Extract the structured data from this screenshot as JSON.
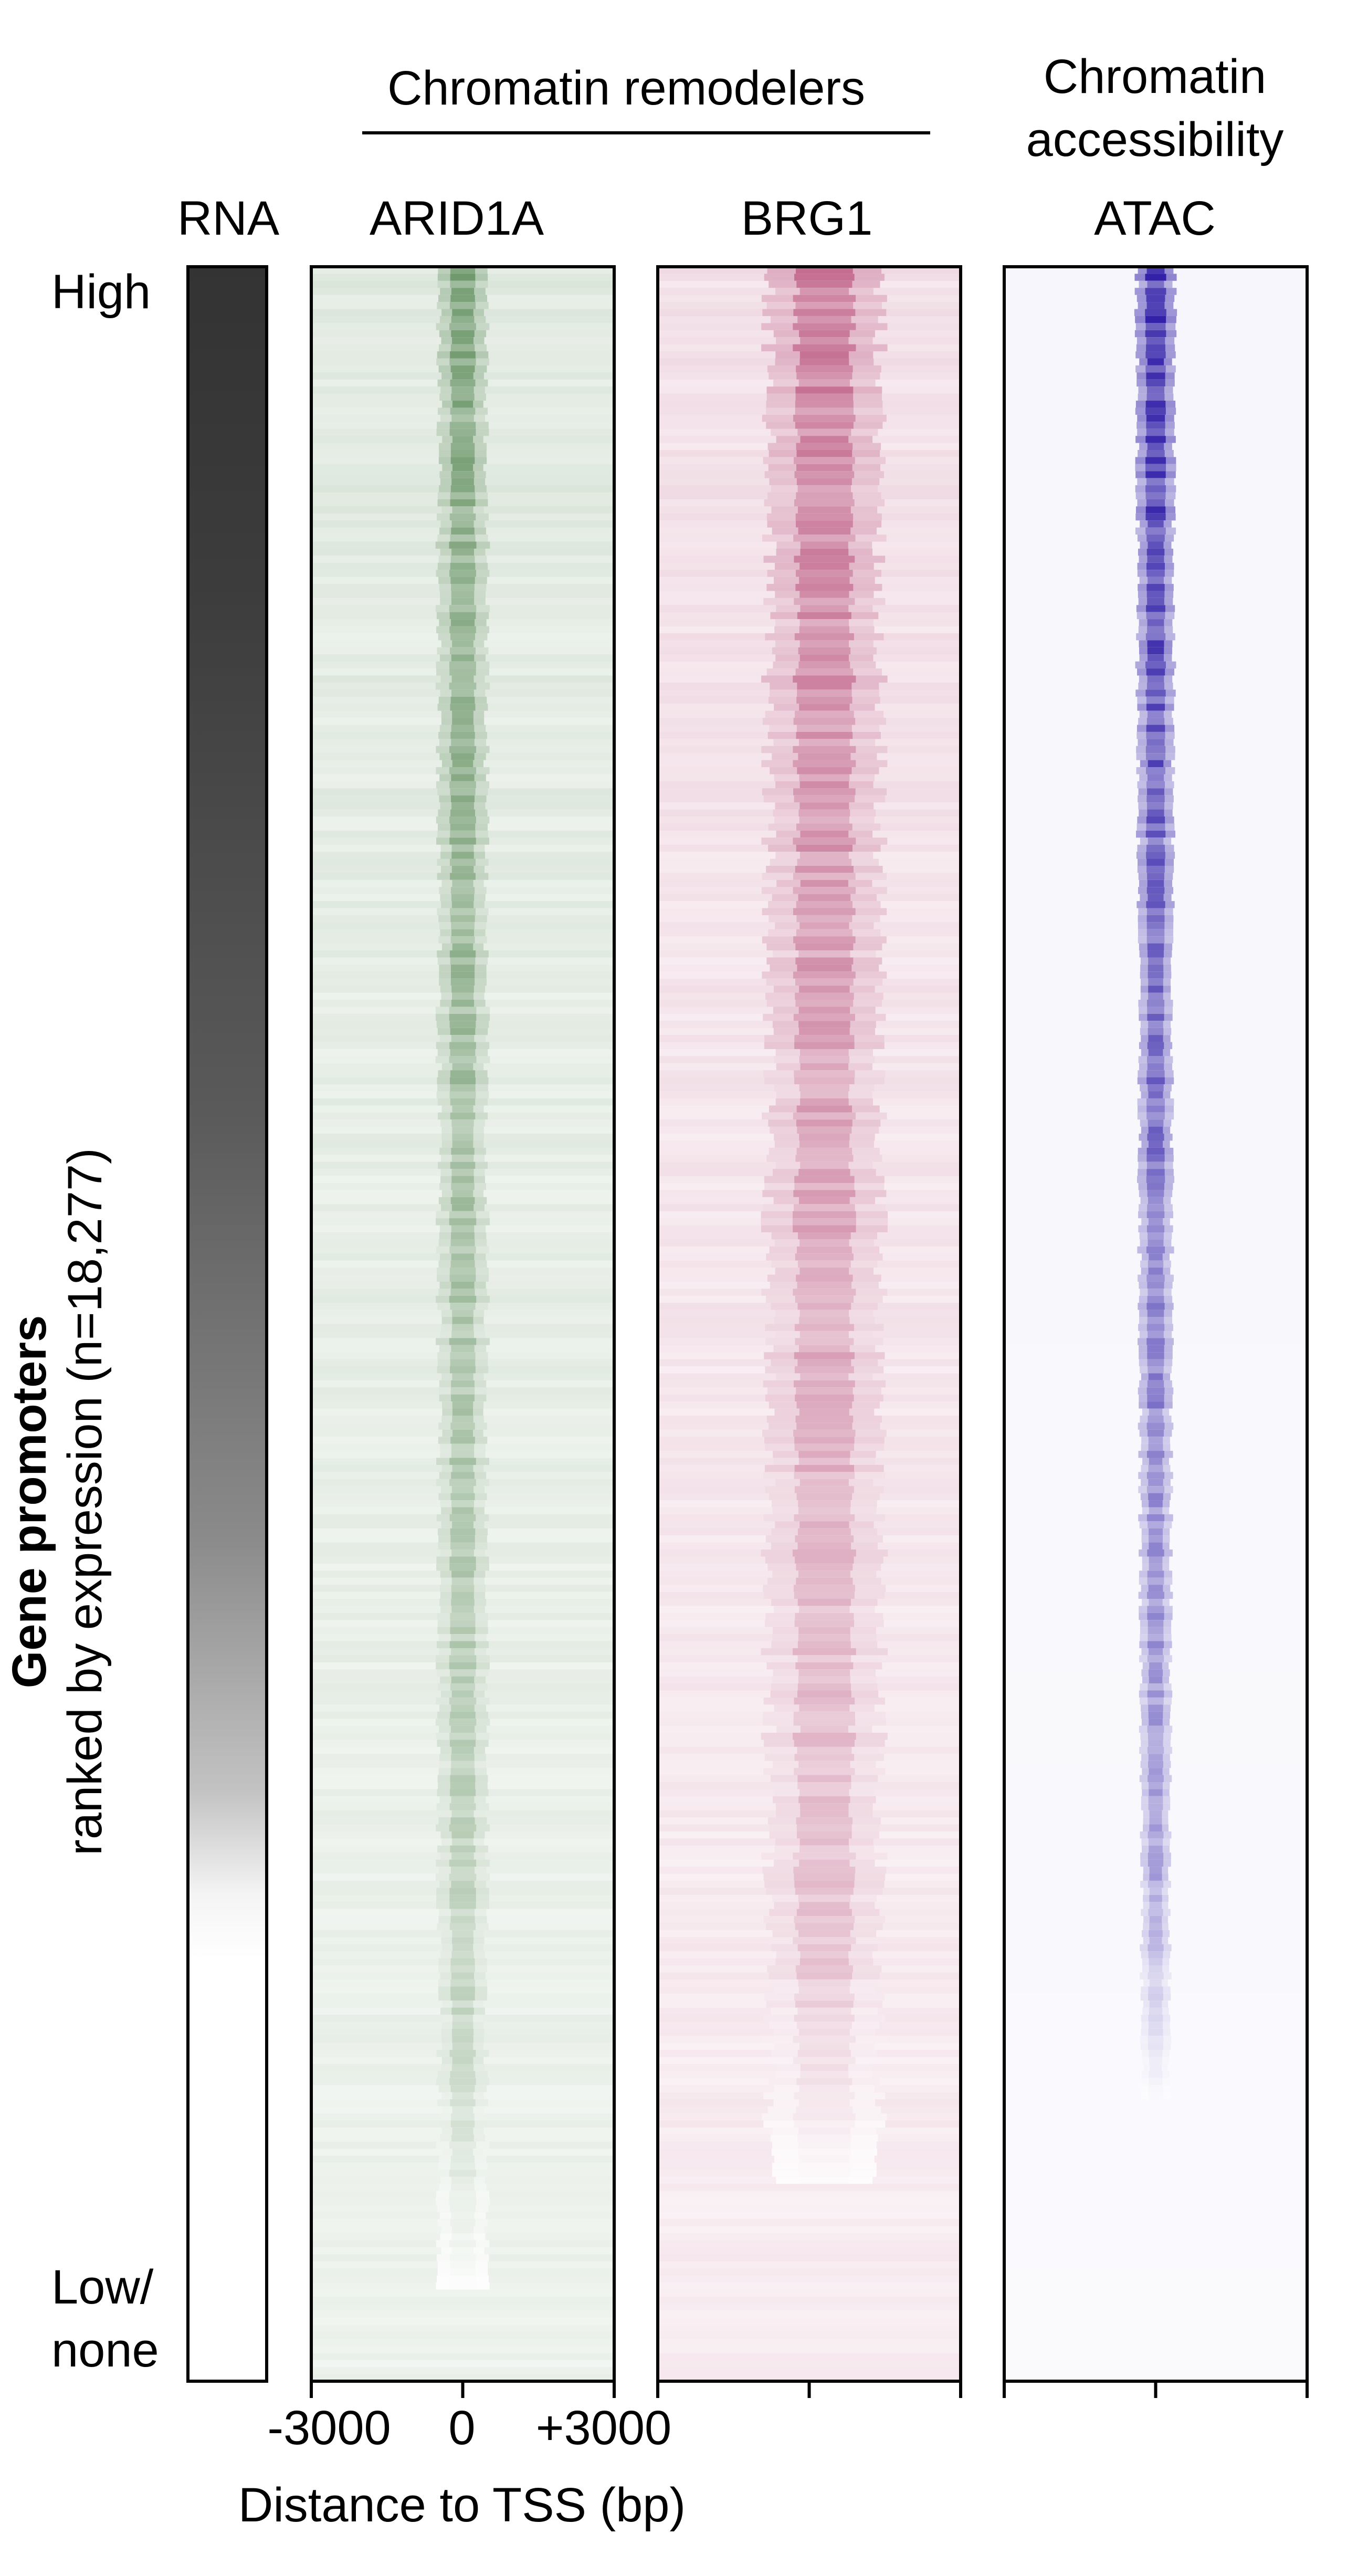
{
  "header": {
    "group_remodelers": "Chromatin remodelers",
    "group_accessibility_line1": "Chromatin",
    "group_accessibility_line2": "accessibility"
  },
  "y_axis": {
    "label_bold": "Gene promoters",
    "label_regular": "ranked by expression (n=18,277)",
    "top_label": "High",
    "bottom_label_line1": "Low/",
    "bottom_label_line2": "none"
  },
  "x_axis": {
    "label": "Distance to TSS (bp)",
    "ticks": [
      "-3000",
      "0",
      "+3000"
    ]
  },
  "chart_data": {
    "type": "heatmap",
    "title": "",
    "xlabel": "Distance to TSS (bp)",
    "ylabel": "Gene promoters ranked by expression (n=18,277)",
    "x_range": [
      -3000,
      3000
    ],
    "n_rows": 18277,
    "row_order": "descending RNA expression (High at top, Low/none at bottom)",
    "panels": [
      {
        "name": "RNA",
        "kind": "gradient",
        "color_high": "#333333",
        "color_low": "#ffffff",
        "fade_to_white_fraction": 0.77
      },
      {
        "name": "ARID1A",
        "kind": "tss-heatmap",
        "color": "#2e6b2a",
        "peak_x": 0,
        "width_bp": 900,
        "signal_fade_fraction": 0.85
      },
      {
        "name": "BRG1",
        "kind": "tss-heatmap",
        "color": "#a8285c",
        "peak_x": 300,
        "width_bp": 2100,
        "signal_fade_fraction": 0.8
      },
      {
        "name": "ATAC",
        "kind": "tss-heatmap",
        "color": "#3322a8",
        "peak_x": 0,
        "width_bp": 600,
        "signal_fade_fraction": 0.76
      }
    ],
    "grid": false,
    "legend": "none"
  }
}
